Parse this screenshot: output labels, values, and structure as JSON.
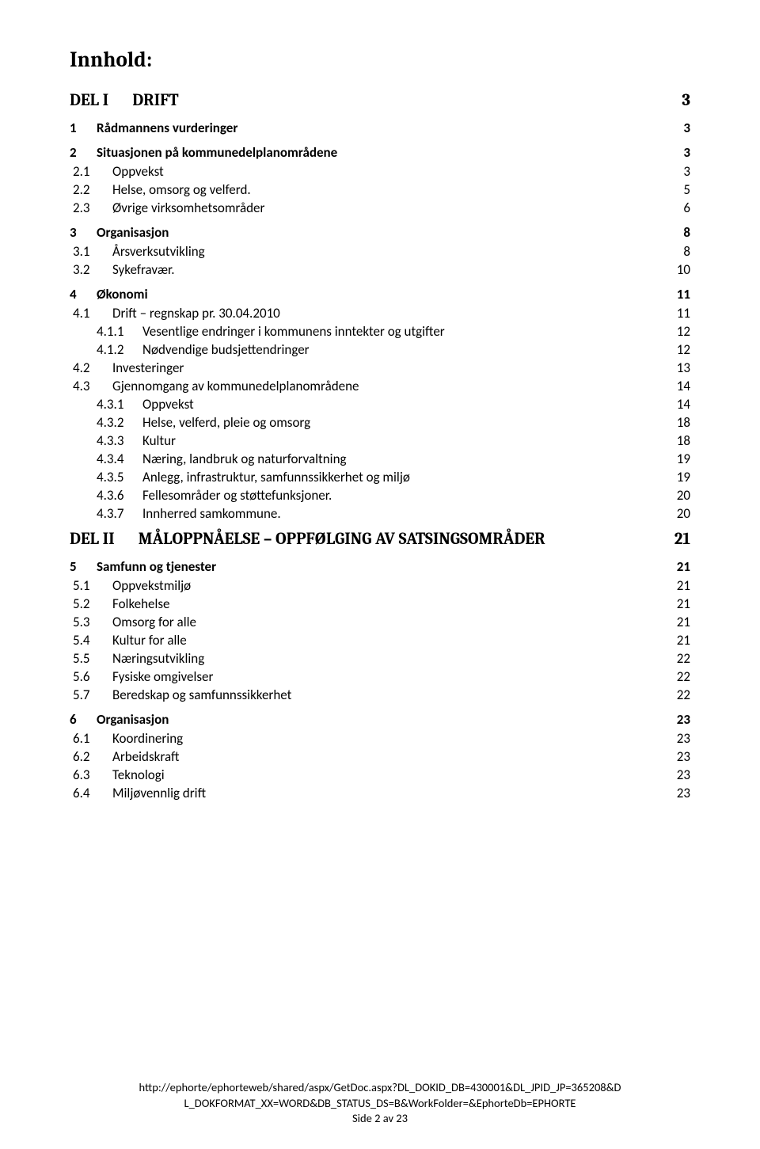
{
  "title": "Innhold:",
  "parts": [
    {
      "label_left": "DEL I",
      "label_right": "DRIFT",
      "page": "3",
      "sections": [
        {
          "num": "1",
          "label": "Rådmannens vurderinger",
          "page": "3",
          "subs": []
        },
        {
          "num": "2",
          "label": "Situasjonen på kommunedelplanområdene",
          "page": "3",
          "subs": [
            {
              "num": "2.1",
              "label": "Oppvekst",
              "page": "3",
              "subsubs": []
            },
            {
              "num": "2.2",
              "label": "Helse, omsorg og velferd.",
              "page": "5",
              "subsubs": []
            },
            {
              "num": "2.3",
              "label": "Øvrige virksomhetsområder",
              "page": "6",
              "subsubs": []
            }
          ]
        },
        {
          "num": "3",
          "label": "Organisasjon",
          "page": "8",
          "subs": [
            {
              "num": "3.1",
              "label": "Årsverksutvikling",
              "page": "8",
              "subsubs": []
            },
            {
              "num": "3.2",
              "label": "Sykefravær.",
              "page": "10",
              "subsubs": []
            }
          ]
        },
        {
          "num": "4",
          "label": "Økonomi",
          "page": "11",
          "subs": [
            {
              "num": "4.1",
              "label": "Drift – regnskap pr. 30.04.2010",
              "page": "11",
              "subsubs": [
                {
                  "num": "4.1.1",
                  "label": "Vesentlige endringer i kommunens inntekter og utgifter",
                  "page": "12"
                },
                {
                  "num": "4.1.2",
                  "label": "Nødvendige budsjettendringer",
                  "page": "12"
                }
              ]
            },
            {
              "num": "4.2",
              "label": "Investeringer",
              "page": "13",
              "subsubs": []
            },
            {
              "num": "4.3",
              "label": "Gjennomgang av kommunedelplanområdene",
              "page": "14",
              "subsubs": [
                {
                  "num": "4.3.1",
                  "label": "Oppvekst",
                  "page": "14"
                },
                {
                  "num": "4.3.2",
                  "label": "Helse, velferd, pleie og omsorg",
                  "page": "18"
                },
                {
                  "num": "4.3.3",
                  "label": "Kultur",
                  "page": "18"
                },
                {
                  "num": "4.3.4",
                  "label": "Næring, landbruk og naturforvaltning",
                  "page": "19"
                },
                {
                  "num": "4.3.5",
                  "label": "Anlegg, infrastruktur, samfunnssikkerhet og miljø",
                  "page": "19"
                },
                {
                  "num": "4.3.6",
                  "label": "Fellesområder og støttefunksjoner.",
                  "page": "20"
                },
                {
                  "num": "4.3.7",
                  "label": "Innherred samkommune.",
                  "page": "20"
                }
              ]
            }
          ]
        }
      ]
    },
    {
      "label_left": "DEL II",
      "label_right": "MÅLOPPNÅELSE – OPPFØLGING AV SATSINGSOMRÅDER",
      "page": "21",
      "sections": [
        {
          "num": "5",
          "label": "Samfunn og tjenester",
          "page": "21",
          "subs": [
            {
              "num": "5.1",
              "label": "Oppvekstmiljø",
              "page": "21",
              "subsubs": []
            },
            {
              "num": "5.2",
              "label": "Folkehelse",
              "page": "21",
              "subsubs": []
            },
            {
              "num": "5.3",
              "label": "Omsorg for alle",
              "page": "21",
              "subsubs": []
            },
            {
              "num": "5.4",
              "label": "Kultur for alle",
              "page": "21",
              "subsubs": []
            },
            {
              "num": "5.5",
              "label": "Næringsutvikling",
              "page": "22",
              "subsubs": []
            },
            {
              "num": "5.6",
              "label": "Fysiske omgivelser",
              "page": "22",
              "subsubs": []
            },
            {
              "num": "5.7",
              "label": "Beredskap og samfunnssikkerhet",
              "page": "22",
              "subsubs": []
            }
          ]
        },
        {
          "num": "6",
          "label": "Organisasjon",
          "page": "23",
          "subs": [
            {
              "num": "6.1",
              "label": " Koordinering",
              "page": "23",
              "subsubs": []
            },
            {
              "num": "6.2",
              "label": "Arbeidskraft",
              "page": "23",
              "subsubs": []
            },
            {
              "num": "6.3",
              "label": "Teknologi",
              "page": "23",
              "subsubs": []
            },
            {
              "num": "6.4",
              "label": "Miljøvennlig drift",
              "page": "23",
              "subsubs": []
            }
          ]
        }
      ]
    }
  ],
  "footer": {
    "line1": "http://ephorte/ephorteweb/shared/aspx/GetDoc.aspx?DL_DOKID_DB=430001&DL_JPID_JP=365208&D",
    "line2": "L_DOKFORMAT_XX=WORD&DB_STATUS_DS=B&WorkFolder=&EphorteDb=EPHORTE",
    "line3": "Side 2 av 23"
  }
}
